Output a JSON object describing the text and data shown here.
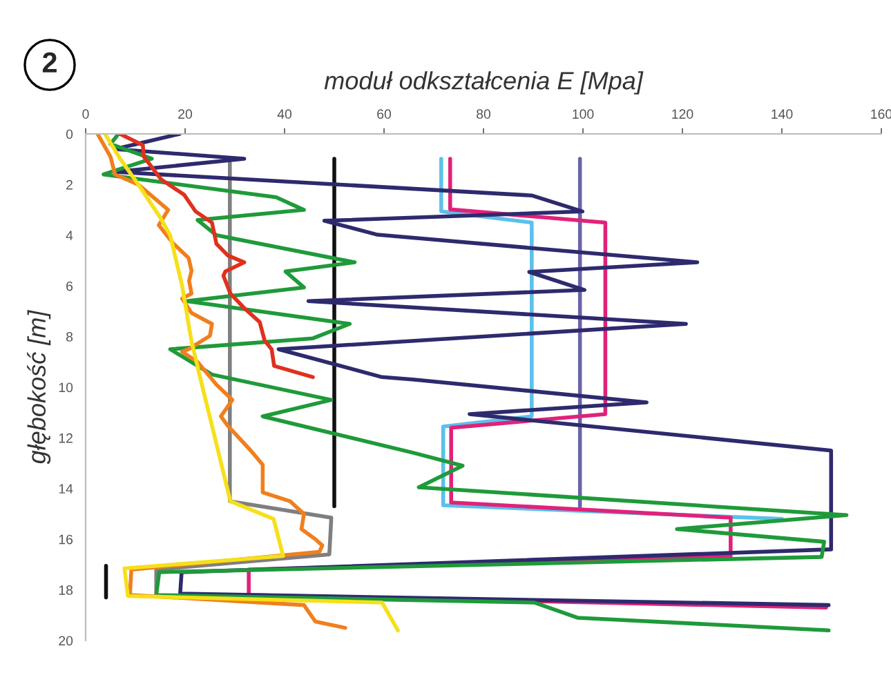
{
  "chart_data": {
    "type": "line",
    "title": "moduł odkształcenia E [Mpa]",
    "ylabel": "głębokość [m]",
    "annotations": [
      "2"
    ],
    "xlim": [
      0,
      160
    ],
    "xticks": [
      0,
      20,
      40,
      60,
      80,
      100,
      120,
      140,
      160
    ],
    "ylim": [
      20,
      0
    ],
    "yticks": [
      0,
      2,
      4,
      6,
      8,
      10,
      12,
      14,
      16,
      18,
      20
    ],
    "grid": false,
    "legend": false,
    "marker": "none",
    "line_style": "solid",
    "series": [
      {
        "color": "#111111",
        "x": [
          50,
          50
        ],
        "values": [
          0.98,
          14.7
        ]
      },
      {
        "color": "#111111",
        "x": [
          4.1,
          4.1
        ],
        "values": [
          17.05,
          18.3
        ]
      },
      {
        "color": "#7f7f7f",
        "x": [
          29,
          29,
          49.4,
          49,
          14.2,
          14.2
        ],
        "values": [
          1.15,
          14.5,
          15.15,
          16.6,
          17.2,
          18.2
        ]
      },
      {
        "color": "#6a64a8",
        "x": [
          99.4,
          99.4
        ],
        "values": [
          0.98,
          14.7
        ]
      },
      {
        "color": "#5bc0eb",
        "x": [
          71.5,
          71.5,
          89.7,
          89.7,
          71.9,
          71.9,
          140
        ],
        "values": [
          0.98,
          3.06,
          3.5,
          11.15,
          11.55,
          14.66,
          15.2
        ]
      },
      {
        "color": "#e0227a",
        "x": [
          73.3,
          73.3,
          104.5,
          104.5,
          73.5,
          73.5,
          129.7,
          129.7,
          32.8,
          32.8,
          148.9
        ],
        "values": [
          0.98,
          2.98,
          3.5,
          11.06,
          11.6,
          14.55,
          15.15,
          16.66,
          17.2,
          18.2,
          18.7
        ]
      },
      {
        "color": "#2e2a6e",
        "x": [
          18.9,
          5.9,
          31.9,
          5.9,
          89.7,
          99.9,
          48,
          58.7,
          123,
          89.2,
          100.3,
          44.8,
          120.7,
          38.8,
          59.6,
          66.1,
          112.8,
          77.2,
          149.9,
          149.9,
          19.3,
          19,
          149.4
        ],
        "values": [
          0,
          0.6,
          0.98,
          1.5,
          2.43,
          3.06,
          3.43,
          3.98,
          5.07,
          5.45,
          6.16,
          6.6,
          7.5,
          8.5,
          9.6,
          9.7,
          10.6,
          11.06,
          12.5,
          16.4,
          17.3,
          18.15,
          18.6
        ]
      },
      {
        "color": "#1f9a3a",
        "x": [
          6.4,
          5,
          13.3,
          3.6,
          38.3,
          43.9,
          22.5,
          26.3,
          54.1,
          40.2,
          43.9,
          20.3,
          53.1,
          45.7,
          17,
          25.4,
          49.4,
          35.6,
          66.1,
          75.8,
          67,
          153,
          118.9,
          148.5,
          148,
          14.8,
          14.2,
          90.2,
          98.9,
          149.4
        ],
        "values": [
          0.05,
          0.4,
          0.98,
          1.6,
          2.5,
          3,
          3.4,
          4,
          5.07,
          5.43,
          6.06,
          6.6,
          7.5,
          8.07,
          8.5,
          9.5,
          10.5,
          11.15,
          12.6,
          13.1,
          13.95,
          15.05,
          15.6,
          16.1,
          16.7,
          17.3,
          18.2,
          18.5,
          19.1,
          19.6
        ]
      },
      {
        "color": "#e0301e",
        "x": [
          6.9,
          11.5,
          11.7,
          15.2,
          19.8,
          22.1,
          25.4,
          26.3,
          28.6,
          31.9,
          28.1,
          27.7,
          29.1,
          31.9,
          35,
          36,
          37.4,
          37.9,
          45.7
        ],
        "values": [
          0,
          0.44,
          0.9,
          1.8,
          2.4,
          3.06,
          3.5,
          4.34,
          4.8,
          5.07,
          5.43,
          5.6,
          6.3,
          6.88,
          7.43,
          8.16,
          8.5,
          9.16,
          9.6
        ]
      },
      {
        "color": "#f07f1e",
        "x": [
          2.4,
          5,
          5.9,
          10.6,
          14.2,
          16.6,
          14.7,
          17.5,
          20.7,
          21.3,
          20.8,
          21.3,
          19.4,
          21.3,
          25.4,
          25,
          20.7,
          19.4,
          22.5,
          26.3,
          29.5,
          27.2,
          28.5,
          33.2,
          35.6,
          35.6,
          41.1,
          43.9,
          43.4,
          46.2,
          47.6,
          47,
          9.2,
          8.9,
          43.9,
          46.2,
          52.2
        ],
        "values": [
          0,
          0.9,
          1.6,
          2,
          2.6,
          3,
          3.6,
          4.3,
          4.9,
          5.4,
          5.8,
          6.3,
          6.5,
          7.07,
          7.5,
          7.97,
          8.5,
          8.6,
          9,
          9.9,
          10.5,
          11.15,
          11.5,
          12.5,
          13.06,
          14.15,
          14.5,
          15,
          15.6,
          16,
          16.25,
          16.5,
          17.2,
          18.2,
          18.6,
          19.25,
          19.5
        ]
      },
      {
        "color": "#f5e01a",
        "x": [
          3.9,
          7,
          10.6,
          15,
          17,
          19.4,
          21.3,
          23.5,
          26,
          29.1,
          37.8,
          39.7,
          7.8,
          8.5,
          59.6,
          62.8
        ],
        "values": [
          0,
          1,
          2,
          3.3,
          4,
          6,
          8.2,
          10,
          12,
          14.5,
          15.2,
          16.66,
          17.15,
          18.24,
          18.5,
          19.6
        ]
      }
    ]
  }
}
